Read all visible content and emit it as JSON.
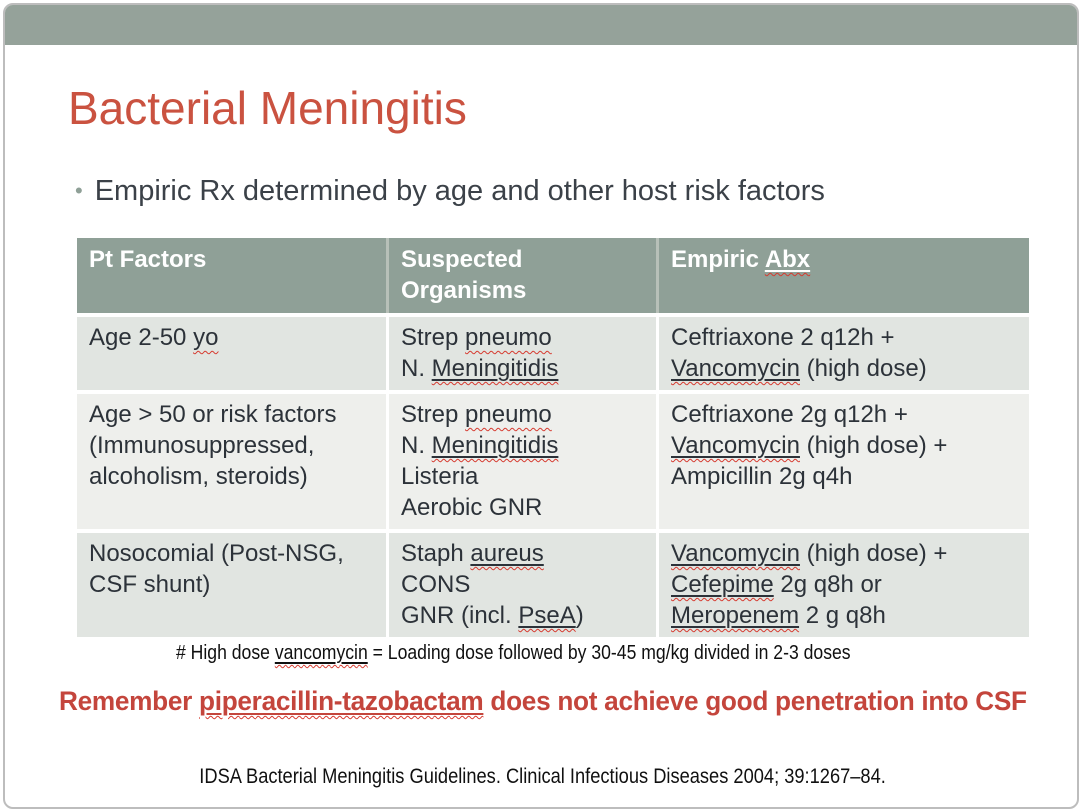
{
  "slide": {
    "title": "Bacterial Meningitis",
    "bullet_glyph": "•",
    "bullet_text": "Empiric Rx determined by age and other host risk factors",
    "colors": {
      "top_band": "#95A29A",
      "table_header_bg": "#8FA097",
      "row_band_dark": "#E1E5E1",
      "row_band_light": "#EEEFEC",
      "title_accent": "#CA5240",
      "warning_red": "#C4453C",
      "spellcheck_squiggle": "#D63A2F",
      "body_text": "#2C3239"
    }
  },
  "table": {
    "headers": [
      [
        [
          {
            "t": "Pt Factors",
            "s": ""
          }
        ]
      ],
      [
        [
          {
            "t": "Suspected",
            "s": ""
          }
        ],
        [
          {
            "t": "Organisms",
            "s": ""
          }
        ]
      ],
      [
        [
          {
            "t": "Empiric ",
            "s": ""
          },
          {
            "t": "Abx",
            "s": "usq"
          }
        ]
      ]
    ],
    "rows": [
      {
        "cells": [
          [
            [
              {
                "t": "Age 2-50 ",
                "s": ""
              },
              {
                "t": "yo",
                "s": "sq"
              }
            ]
          ],
          [
            [
              {
                "t": "Strep ",
                "s": ""
              },
              {
                "t": "pneumo",
                "s": "sq"
              }
            ],
            [
              {
                "t": "N. ",
                "s": ""
              },
              {
                "t": "Meningitidis",
                "s": "usq"
              }
            ]
          ],
          [
            [
              {
                "t": "Ceftriaxone 2 q12h +",
                "s": ""
              }
            ],
            [
              {
                "t": "Vancomycin",
                "s": "usq"
              },
              {
                "t": " (high dose)",
                "s": ""
              }
            ]
          ]
        ]
      },
      {
        "cells": [
          [
            [
              {
                "t": "Age > 50 or risk factors",
                "s": ""
              }
            ],
            [
              {
                "t": "(Immunosuppressed,",
                "s": ""
              }
            ],
            [
              {
                "t": "alcoholism, steroids)",
                "s": ""
              }
            ]
          ],
          [
            [
              {
                "t": "Strep ",
                "s": ""
              },
              {
                "t": "pneumo",
                "s": "sq"
              }
            ],
            [
              {
                "t": "N. ",
                "s": ""
              },
              {
                "t": "Meningitidis",
                "s": "usq"
              }
            ],
            [
              {
                "t": "Listeria",
                "s": ""
              }
            ],
            [
              {
                "t": "Aerobic GNR",
                "s": ""
              }
            ]
          ],
          [
            [
              {
                "t": "Ceftriaxone 2g q12h +",
                "s": ""
              }
            ],
            [
              {
                "t": "Vancomycin",
                "s": "usq"
              },
              {
                "t": " (high dose) +",
                "s": ""
              }
            ],
            [
              {
                "t": "Ampicillin 2g q4h",
                "s": ""
              }
            ]
          ]
        ]
      },
      {
        "cells": [
          [
            [
              {
                "t": "Nosocomial (Post-NSG,",
                "s": ""
              }
            ],
            [
              {
                "t": "CSF shunt)",
                "s": ""
              }
            ]
          ],
          [
            [
              {
                "t": "Staph ",
                "s": ""
              },
              {
                "t": "aureus",
                "s": "usq"
              }
            ],
            [
              {
                "t": "CONS",
                "s": ""
              }
            ],
            [
              {
                "t": "GNR (incl. ",
                "s": ""
              },
              {
                "t": "PseA",
                "s": "usq"
              },
              {
                "t": ")",
                "s": ""
              }
            ]
          ],
          [
            [
              {
                "t": "Vancomycin",
                "s": "usq"
              },
              {
                "t": " (high dose) +",
                "s": ""
              }
            ],
            [
              {
                "t": "Cefepime",
                "s": "usq"
              },
              {
                "t": " 2g q8h or",
                "s": ""
              }
            ],
            [
              {
                "t": "Meropenem",
                "s": "usq"
              },
              {
                "t": " 2 g q8h",
                "s": ""
              }
            ]
          ]
        ]
      }
    ]
  },
  "note": [
    [
      {
        "t": "# High dose ",
        "s": ""
      },
      {
        "t": "vancomycin",
        "s": "usq"
      },
      {
        "t": " = Loading dose followed by 30-45 mg/kg divided in 2-3 doses",
        "s": ""
      }
    ]
  ],
  "warning": [
    [
      {
        "t": "Remember ",
        "s": ""
      },
      {
        "t": "piperacillin-tazobactam",
        "s": "usq"
      },
      {
        "t": " does not achieve good penetration into CSF",
        "s": ""
      }
    ]
  ],
  "citation": "IDSA Bacterial Meningitis Guidelines. Clinical Infectious Diseases 2004; 39:1267–84."
}
